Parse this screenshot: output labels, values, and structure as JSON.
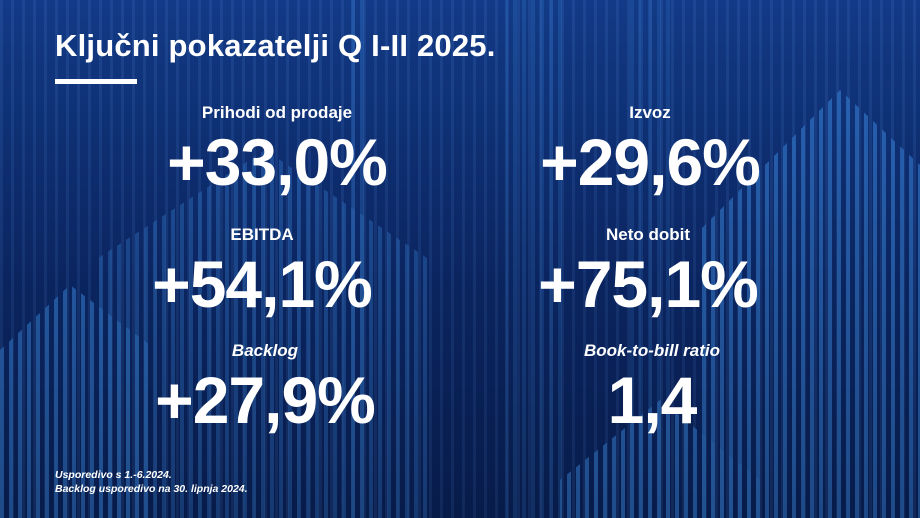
{
  "title": "Ključni pokazatelji Q I-II 2025.",
  "metrics": [
    {
      "label": "Prihodi od prodaje",
      "value": "+33,0%"
    },
    {
      "label": "Izvoz",
      "value": "+29,6%"
    },
    {
      "label": "EBITDA",
      "value": "+54,1%"
    },
    {
      "label": "Neto dobit",
      "value": "+75,1%"
    },
    {
      "label": "Backlog",
      "value": "+27,9%"
    },
    {
      "label": "Book-to-bill ratio",
      "value": "1,4"
    }
  ],
  "footnotes": [
    "Usporedivo s 1.-6.2024.",
    "Backlog usporedivo na 30. lipnja 2024."
  ],
  "colors": {
    "background": "#0d2a6b",
    "stripe": "#2a66b8",
    "text": "#ffffff"
  }
}
